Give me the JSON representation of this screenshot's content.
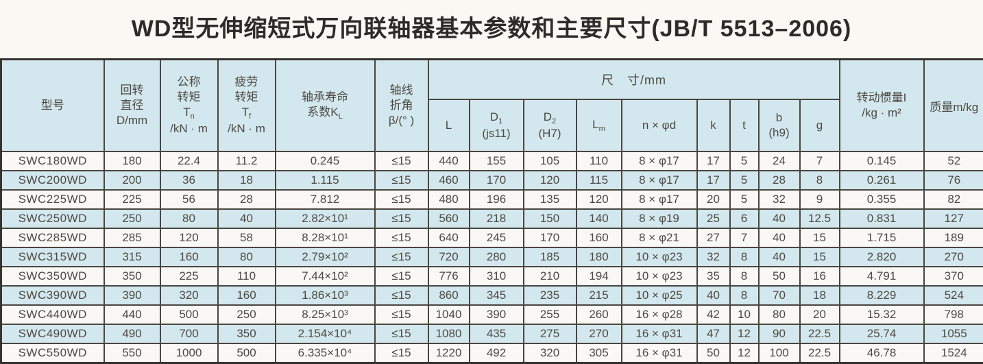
{
  "title": "WD型无伸缩短式万向联轴器基本参数和主要尺寸(JB/T 5513–2006)",
  "colors": {
    "header_bg": "#d3e8ee",
    "row_alt_bg": "#d3e8ee",
    "row_bg": "#faf8f4",
    "border": "#4a4541",
    "page_bg": "#fbf8f3",
    "title_text": "#2e2a27",
    "body_text": "#4c4843"
  },
  "table": {
    "headers": {
      "model": "型号",
      "diameter": {
        "l1": "回转",
        "l2": "直径",
        "l3": "D/mm"
      },
      "nominal_torque": {
        "l1": "公称",
        "l2": "转矩",
        "sym": "T",
        "sub": "n",
        "unit": "/kN · m"
      },
      "fatigue_torque": {
        "l1": "疲劳",
        "l2": "转矩",
        "sym": "T",
        "sub": "f",
        "unit": "/kN · m"
      },
      "bearing_life": {
        "l1": "轴承寿命",
        "pre": "系数K",
        "sub": "L"
      },
      "deflection_angle": {
        "l1": "轴线",
        "l2": "折角",
        "l3": "β/(° )"
      },
      "dimensions_group": "尺　寸/mm",
      "dim_L": {
        "t": "L"
      },
      "dim_D1": {
        "t": "D",
        "sub": "1",
        "l2": "(js11)"
      },
      "dim_D2": {
        "t": "D",
        "sub": "2",
        "l2": "(H7)"
      },
      "dim_Lm": {
        "t": "L",
        "sub": "m"
      },
      "dim_nxd": {
        "t": "n × φd"
      },
      "dim_k": {
        "t": "k"
      },
      "dim_t": {
        "t": "t"
      },
      "dim_b": {
        "t": "b",
        "l2": "(h9)"
      },
      "dim_g": {
        "t": "g"
      },
      "inertia": {
        "l1": "转动惯量I",
        "l2": "/kg · m²"
      },
      "mass": "质量m/kg"
    },
    "rows": [
      [
        "SWC180WD",
        "180",
        "22.4",
        "11.2",
        "0.245",
        "≤15",
        "440",
        "155",
        "105",
        "110",
        "8 × φ17",
        "17",
        "5",
        "24",
        "7",
        "0.145",
        "52"
      ],
      [
        "SWC200WD",
        "200",
        "36",
        "18",
        "1.115",
        "≤15",
        "460",
        "170",
        "120",
        "115",
        "8 × φ17",
        "17",
        "5",
        "28",
        "8",
        "0.261",
        "76"
      ],
      [
        "SWC225WD",
        "225",
        "56",
        "28",
        "7.812",
        "≤15",
        "480",
        "196",
        "135",
        "120",
        "8 × φ17",
        "20",
        "5",
        "32",
        "9",
        "0.355",
        "82"
      ],
      [
        "SWC250WD",
        "250",
        "80",
        "40",
        "2.82×10¹",
        "≤15",
        "560",
        "218",
        "150",
        "140",
        "8 × φ19",
        "25",
        "6",
        "40",
        "12.5",
        "0.831",
        "127"
      ],
      [
        "SWC285WD",
        "285",
        "120",
        "58",
        "8.28×10¹",
        "≤15",
        "640",
        "245",
        "170",
        "160",
        "8 × φ21",
        "27",
        "7",
        "40",
        "15",
        "1.715",
        "189"
      ],
      [
        "SWC315WD",
        "315",
        "160",
        "80",
        "2.79×10²",
        "≤15",
        "720",
        "280",
        "185",
        "180",
        "10 × φ23",
        "32",
        "8",
        "40",
        "15",
        "2.820",
        "270"
      ],
      [
        "SWC350WD",
        "350",
        "225",
        "110",
        "7.44×10²",
        "≤15",
        "776",
        "310",
        "210",
        "194",
        "10 × φ23",
        "35",
        "8",
        "50",
        "16",
        "4.791",
        "370"
      ],
      [
        "SWC390WD",
        "390",
        "320",
        "160",
        "1.86×10³",
        "≤15",
        "860",
        "345",
        "235",
        "215",
        "10 × φ25",
        "40",
        "8",
        "70",
        "18",
        "8.229",
        "524"
      ],
      [
        "SWC440WD",
        "440",
        "500",
        "250",
        "8.25×10³",
        "≤15",
        "1040",
        "390",
        "255",
        "260",
        "16 × φ28",
        "42",
        "10",
        "80",
        "20",
        "15.32",
        "798"
      ],
      [
        "SWC490WD",
        "490",
        "700",
        "350",
        "2.154×10⁴",
        "≤15",
        "1080",
        "435",
        "275",
        "270",
        "16 × φ31",
        "47",
        "12",
        "90",
        "22.5",
        "25.74",
        "1055"
      ],
      [
        "SWC550WD",
        "550",
        "1000",
        "500",
        "6.335×10⁴",
        "≤15",
        "1220",
        "492",
        "320",
        "305",
        "16 × φ31",
        "50",
        "12",
        "100",
        "22.5",
        "46.78",
        "1524"
      ]
    ]
  }
}
